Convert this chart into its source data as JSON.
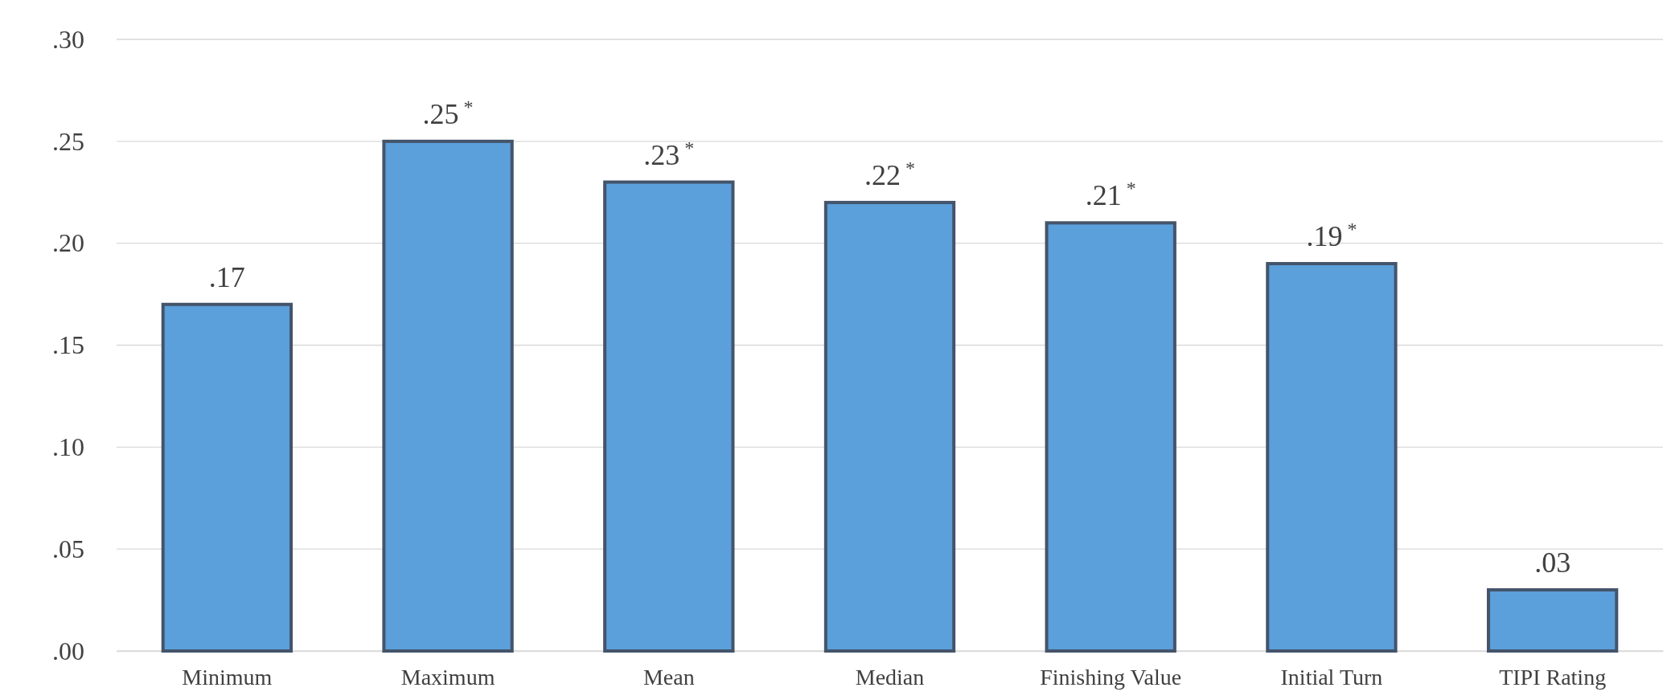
{
  "chart_data": {
    "type": "bar",
    "categories": [
      "Minimum",
      "Maximum",
      "Mean",
      "Median",
      "Finishing Value",
      "Initial Turn",
      "TIPI Rating"
    ],
    "values": [
      0.17,
      0.25,
      0.23,
      0.22,
      0.21,
      0.19,
      0.03
    ],
    "value_labels": [
      ".17",
      ".25$^{*}$",
      ".23$^{*}$",
      ".22$^{*}$",
      ".21$^{*}$",
      ".19$^{*}$",
      ".03"
    ],
    "color": "#5b9fdb",
    "ylim": [
      0,
      0.3
    ],
    "yticks": [
      {
        "value": 0,
        "label": ".00"
      },
      {
        "value": 0.05,
        "label": ".05"
      },
      {
        "value": 0.1,
        "label": ".10"
      },
      {
        "value": 0.15,
        "label": ".15"
      },
      {
        "value": 0.2,
        "label": ".20"
      },
      {
        "value": 0.25,
        "label": ".25"
      },
      {
        "value": 0.3,
        "label": ".30"
      }
    ],
    "grid": "y"
  }
}
